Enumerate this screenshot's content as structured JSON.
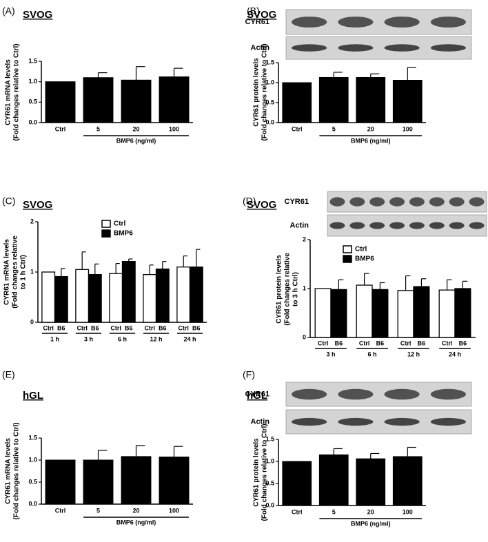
{
  "chart_data": [
    {
      "type": "bar",
      "panel_label": "(A)",
      "cell_line": "SVOG",
      "ylabel": [
        "CYR61 mRNA levels",
        "(Fold changes relative to Ctrl)"
      ],
      "categories": [
        "Ctrl",
        "5",
        "20",
        "100"
      ],
      "values": [
        1.0,
        1.1,
        1.04,
        1.12
      ],
      "errors": [
        null,
        0.12,
        0.33,
        0.21
      ],
      "color": "#000000",
      "group_label": "BMP6 (ng/ml)",
      "ylim": [
        0,
        1.5
      ],
      "yticks": [
        {
          "value": 0,
          "label": "0.0"
        },
        {
          "value": 0.5,
          "label": "0.5"
        },
        {
          "value": 1,
          "label": "1.0"
        },
        {
          "value": 1.5,
          "label": "1.5"
        }
      ]
    },
    {
      "type": "bar",
      "panel_label": "(B)",
      "cell_line": "SVOG",
      "blot_labels": [
        "CYR61",
        "Actin"
      ],
      "ylabel": [
        "CYR61 protein levels",
        "(Fold changes relative to Ctrl)"
      ],
      "categories": [
        "Ctrl",
        "5",
        "20",
        "100"
      ],
      "values": [
        1.0,
        1.13,
        1.13,
        1.06
      ],
      "errors": [
        null,
        0.13,
        0.09,
        0.32
      ],
      "color": "#000000",
      "group_label": "BMP6 (ng/ml)",
      "ylim": [
        0,
        1.5
      ],
      "yticks": [
        {
          "value": 0,
          "label": "0.0"
        },
        {
          "value": 0.5,
          "label": "0.5"
        },
        {
          "value": 1,
          "label": "1.0"
        },
        {
          "value": 1.5,
          "label": "1.5"
        }
      ]
    },
    {
      "type": "bar",
      "panel_label": "(C)",
      "cell_line": "SVOG",
      "ylabel": [
        "CYR61 mRNA levels",
        "(Fold changes relative",
        "to 1 h Ctrl)"
      ],
      "groups": [
        "1 h",
        "3 h",
        "6 h",
        "12 h",
        "24 h"
      ],
      "bar_labels": [
        "Ctrl",
        "B6"
      ],
      "series": [
        {
          "name": "Ctrl",
          "color": "#ffffff",
          "values": [
            1.0,
            1.05,
            0.97,
            0.95,
            1.1
          ],
          "errors": [
            null,
            0.35,
            0.2,
            0.19,
            0.22
          ]
        },
        {
          "name": "BMP6",
          "color": "#000000",
          "values": [
            0.91,
            0.95,
            1.21,
            1.06,
            1.1
          ],
          "errors": [
            0.16,
            0.21,
            0.05,
            0.15,
            0.35
          ]
        }
      ],
      "legend": "upper center",
      "ylim": [
        0,
        2
      ],
      "yticks": [
        0,
        1,
        2
      ]
    },
    {
      "type": "bar",
      "panel_label": "(D)",
      "cell_line": "SVOG",
      "blot_labels": [
        "CYR61",
        "Actin"
      ],
      "ylabel": [
        "CYR61 protein levels",
        "(Fold changes relative",
        "to 3 h Ctrl)"
      ],
      "groups": [
        "3 h",
        "6 h",
        "12 h",
        "24 h"
      ],
      "bar_labels": [
        "Ctrl",
        "B6"
      ],
      "series": [
        {
          "name": "Ctrl",
          "color": "#ffffff",
          "values": [
            1.0,
            1.07,
            0.96,
            0.97
          ],
          "errors": [
            null,
            0.24,
            0.3,
            0.21
          ]
        },
        {
          "name": "BMP6",
          "color": "#000000",
          "values": [
            0.98,
            0.98,
            1.04,
            1.0
          ],
          "errors": [
            0.2,
            0.14,
            0.16,
            0.15
          ]
        }
      ],
      "legend": "upper center",
      "ylim": [
        0,
        2
      ],
      "yticks": [
        0,
        1,
        2
      ]
    },
    {
      "type": "bar",
      "panel_label": "(E)",
      "cell_line": "hGL",
      "ylabel": [
        "CYR61 mRNA levels",
        "(Fold changes relative to Ctrl)"
      ],
      "categories": [
        "Ctrl",
        "5",
        "20",
        "100"
      ],
      "values": [
        1.0,
        1.0,
        1.08,
        1.07
      ],
      "errors": [
        null,
        0.22,
        0.25,
        0.24
      ],
      "color": "#000000",
      "group_label": "BMP6 (ng/ml)",
      "ylim": [
        0,
        1.5
      ],
      "yticks": [
        {
          "value": 0,
          "label": "0.0"
        },
        {
          "value": 0.5,
          "label": "0.5"
        },
        {
          "value": 1,
          "label": "1.0"
        },
        {
          "value": 1.5,
          "label": "1.5"
        }
      ]
    },
    {
      "type": "bar",
      "panel_label": "(F)",
      "cell_line": "hGL",
      "blot_labels": [
        "CYR61",
        "Actin"
      ],
      "ylabel": [
        "CYR61 protein levels",
        "(Fold changes relative to Ctrl)"
      ],
      "categories": [
        "Ctrl",
        "5",
        "20",
        "100"
      ],
      "values": [
        1.0,
        1.15,
        1.06,
        1.11
      ],
      "errors": [
        null,
        0.14,
        0.12,
        0.21
      ],
      "color": "#000000",
      "group_label": "BMP6 (ng/ml)",
      "ylim": [
        0,
        1.5
      ],
      "yticks": [
        {
          "value": 0,
          "label": "0.0"
        },
        {
          "value": 0.5,
          "label": "0.5"
        },
        {
          "value": 1,
          "label": "1.0"
        },
        {
          "value": 1.5,
          "label": "1.5"
        }
      ]
    }
  ]
}
